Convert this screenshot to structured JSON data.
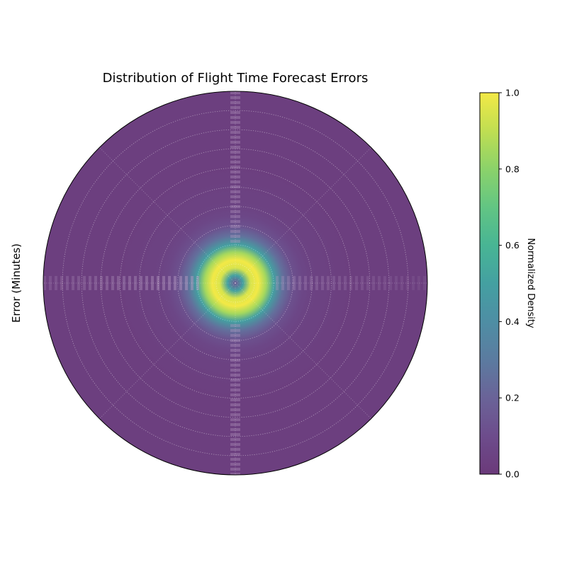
{
  "chart_data": {
    "type": "heatmap",
    "projection": "polar",
    "title": "Distribution of Flight Time Forecast Errors",
    "ylabel": "Error (Minutes)",
    "colorbar": {
      "label": "Normalized Density",
      "colormap": "viridis",
      "range": [
        0.0,
        1.0
      ],
      "ticks": [
        0.0,
        0.2,
        0.4,
        0.6,
        0.8,
        1.0
      ],
      "tick_labels": [
        "0.0",
        "0.2",
        "0.4",
        "0.6",
        "0.8",
        "1.0"
      ]
    },
    "radial_ticks_labeled": false,
    "angular_ticks_labeled": false,
    "grid": true,
    "grid_style": "dotted",
    "density_profile": {
      "r_normalized": [
        0.0,
        0.04,
        0.08,
        0.12,
        0.16,
        0.2,
        0.25,
        0.3,
        0.35,
        0.4,
        0.5,
        0.6,
        0.8,
        1.0
      ],
      "density": [
        0.15,
        0.5,
        0.95,
        1.0,
        0.85,
        0.5,
        0.25,
        0.12,
        0.07,
        0.05,
        0.04,
        0.03,
        0.03,
        0.03
      ]
    }
  }
}
